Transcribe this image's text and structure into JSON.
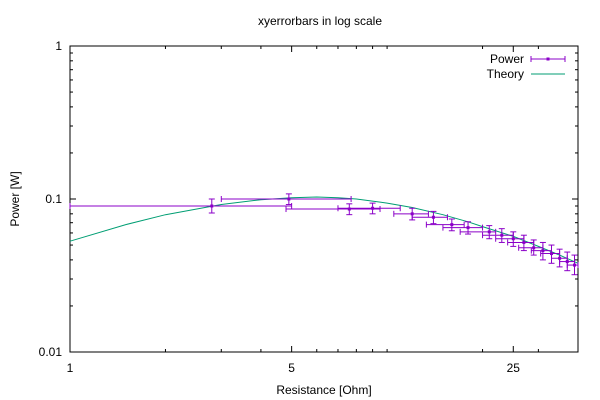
{
  "chart_data": {
    "type": "scatter",
    "title": "xyerrorbars in log scale",
    "xlabel": "Resistance [Ohm]",
    "ylabel": "Power [W]",
    "xscale": "log",
    "yscale": "log",
    "xlim": [
      1,
      40
    ],
    "ylim": [
      0.01,
      1
    ],
    "xticks": [
      1,
      5,
      25
    ],
    "xtick_labels": [
      "1",
      "5",
      "25"
    ],
    "yticks": [
      0.01,
      0.1,
      1
    ],
    "ytick_labels": [
      "0.01",
      "0.1",
      "1"
    ],
    "grid": false,
    "legend_position": "top-right",
    "series": [
      {
        "name": "Power",
        "style": "points with xy error bars",
        "color": "#8b00c8",
        "points": [
          {
            "x": 2.8,
            "y": 0.09,
            "xerr": [
              1.0,
              5.0
            ],
            "yerr": [
              0.081,
              0.1
            ]
          },
          {
            "x": 4.9,
            "y": 0.1,
            "xerr": [
              3.0,
              7.7
            ],
            "yerr": [
              0.092,
              0.108
            ]
          },
          {
            "x": 7.6,
            "y": 0.086,
            "xerr": [
              4.8,
              9.5
            ],
            "yerr": [
              0.079,
              0.093
            ]
          },
          {
            "x": 9.0,
            "y": 0.087,
            "xerr": [
              7.0,
              11.0
            ],
            "yerr": [
              0.08,
              0.094
            ]
          },
          {
            "x": 12.0,
            "y": 0.08,
            "xerr": [
              10.5,
              13.5
            ],
            "yerr": [
              0.073,
              0.087
            ]
          },
          {
            "x": 14.0,
            "y": 0.076,
            "xerr": [
              12.0,
              15.5
            ],
            "yerr": [
              0.069,
              0.083
            ]
          },
          {
            "x": 16.0,
            "y": 0.068,
            "xerr": [
              13.3,
              17.5
            ],
            "yerr": [
              0.062,
              0.074
            ]
          },
          {
            "x": 18.0,
            "y": 0.065,
            "xerr": [
              15.0,
              20.0
            ],
            "yerr": [
              0.059,
              0.071
            ]
          },
          {
            "x": 21.0,
            "y": 0.061,
            "xerr": [
              17.0,
              22.0
            ],
            "yerr": [
              0.055,
              0.067
            ]
          },
          {
            "x": 23.0,
            "y": 0.058,
            "xerr": [
              20.0,
              25.0
            ],
            "yerr": [
              0.052,
              0.064
            ]
          },
          {
            "x": 25.0,
            "y": 0.055,
            "xerr": [
              22.0,
              27.0
            ],
            "yerr": [
              0.049,
              0.061
            ]
          },
          {
            "x": 27.0,
            "y": 0.052,
            "xerr": [
              24.0,
              29.0
            ],
            "yerr": [
              0.046,
              0.058
            ]
          },
          {
            "x": 29.0,
            "y": 0.048,
            "xerr": [
              26.0,
              31.0
            ],
            "yerr": [
              0.043,
              0.054
            ]
          },
          {
            "x": 31.0,
            "y": 0.046,
            "xerr": [
              28.5,
              33.0
            ],
            "yerr": [
              0.04,
              0.052
            ]
          },
          {
            "x": 33.0,
            "y": 0.044,
            "xerr": [
              30.5,
              35.0
            ],
            "yerr": [
              0.038,
              0.05
            ]
          },
          {
            "x": 35.0,
            "y": 0.041,
            "xerr": [
              33.0,
              37.0
            ],
            "yerr": [
              0.036,
              0.047
            ]
          },
          {
            "x": 37.0,
            "y": 0.039,
            "xerr": [
              35.0,
              39.0
            ],
            "yerr": [
              0.034,
              0.045
            ]
          },
          {
            "x": 39.0,
            "y": 0.037,
            "xerr": [
              37.0,
              40.0
            ],
            "yerr": [
              0.032,
              0.043
            ]
          }
        ]
      },
      {
        "name": "Theory",
        "style": "line",
        "color": "#009e73",
        "x": [
          1,
          1.5,
          2,
          3,
          4,
          5,
          6,
          7,
          8,
          10,
          12,
          15,
          18,
          20,
          25,
          30,
          35,
          40
        ],
        "y": [
          0.053,
          0.068,
          0.079,
          0.092,
          0.099,
          0.102,
          0.103,
          0.102,
          0.1,
          0.094,
          0.088,
          0.079,
          0.071,
          0.066,
          0.057,
          0.049,
          0.043,
          0.038
        ]
      }
    ]
  }
}
